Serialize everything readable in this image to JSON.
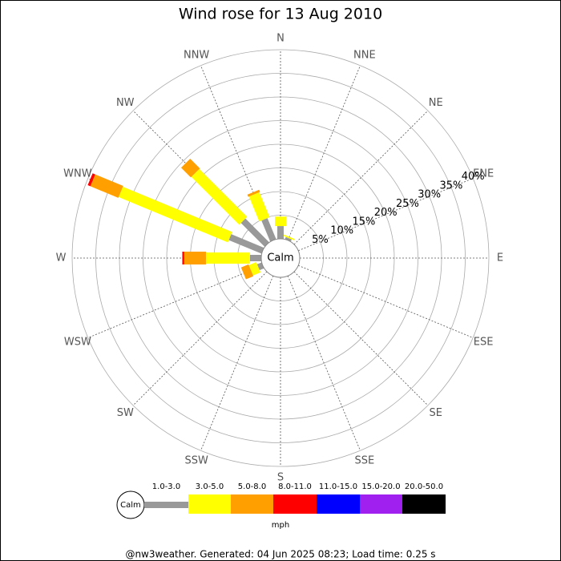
{
  "chart_data": {
    "type": "windrose",
    "title": "Wind rose for 13 Aug 2010",
    "directions": [
      "N",
      "NNE",
      "NE",
      "ENE",
      "E",
      "ESE",
      "SE",
      "SSE",
      "S",
      "SSW",
      "SW",
      "WSW",
      "W",
      "WNW",
      "NW",
      "NNW"
    ],
    "rlim": [
      0,
      40
    ],
    "rticks": [
      {
        "value": 5,
        "label": "5%"
      },
      {
        "value": 10,
        "label": "10%"
      },
      {
        "value": 15,
        "label": "15%"
      },
      {
        "value": 20,
        "label": "20%"
      },
      {
        "value": 25,
        "label": "25%"
      },
      {
        "value": 30,
        "label": "30%"
      },
      {
        "value": 35,
        "label": "35%"
      },
      {
        "value": 40,
        "label": "40%"
      }
    ],
    "calm_label": "Calm",
    "unit_label": "mph",
    "series": [
      {
        "name": "1.0-3.0",
        "color": "#999999",
        "values": [
          2.7,
          0.5,
          0,
          0,
          0,
          0,
          0,
          0,
          0,
          0,
          0,
          1.0,
          2.4,
          7.5,
          7.1,
          4.8
        ]
      },
      {
        "name": "3.0-5.0",
        "color": "#ffff00",
        "values": [
          2.0,
          0.3,
          0,
          0,
          0,
          0,
          0,
          0,
          0,
          0,
          0,
          1.7,
          9.3,
          25,
          14.3,
          5.7
        ]
      },
      {
        "name": "5.0-8.0",
        "color": "#ff9f00",
        "values": [
          0,
          0,
          0,
          0,
          0,
          0,
          0,
          0,
          0,
          0,
          0,
          1.7,
          4.6,
          6.4,
          2.9,
          0.5
        ]
      },
      {
        "name": "8.0-11.0",
        "color": "#ff0000",
        "values": [
          0,
          0,
          0,
          0,
          0,
          0,
          0,
          0,
          0,
          0,
          0,
          0,
          0.4,
          0.6,
          0,
          0
        ]
      },
      {
        "name": "11.0-15.0",
        "color": "#0000ff",
        "values": [
          0,
          0,
          0,
          0,
          0,
          0,
          0,
          0,
          0,
          0,
          0,
          0,
          0,
          0,
          0,
          0
        ]
      },
      {
        "name": "15.0-20.0",
        "color": "#a020f0",
        "values": [
          0,
          0,
          0,
          0,
          0,
          0,
          0,
          0,
          0,
          0,
          0,
          0,
          0,
          0,
          0,
          0
        ]
      },
      {
        "name": "20.0-50.0",
        "color": "#000000",
        "values": [
          0,
          0,
          0,
          0,
          0,
          0,
          0,
          0,
          0,
          0,
          0,
          0,
          0,
          0,
          0,
          0
        ]
      }
    ],
    "footer": "@nw3weather. Generated: 04 Jun 2025 08:23; Load time: 0.25 s"
  }
}
